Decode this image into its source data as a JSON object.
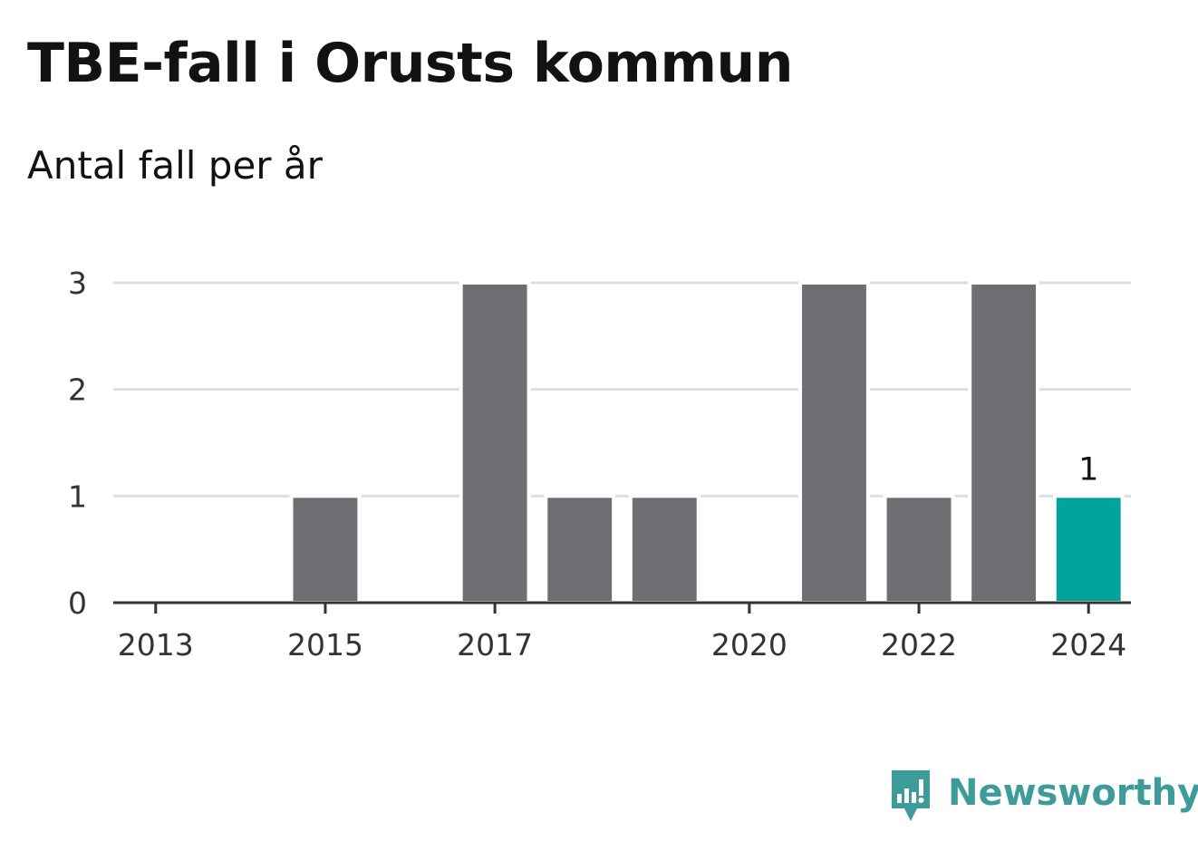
{
  "chart_data": {
    "type": "bar",
    "title": "TBE-fall i Orusts kommun",
    "subtitle": "Antal fall per år",
    "categories": [
      "2013",
      "2014",
      "2015",
      "2016",
      "2017",
      "2018",
      "2019",
      "2020",
      "2021",
      "2022",
      "2023",
      "2024"
    ],
    "values": [
      0,
      0,
      1,
      0,
      3,
      1,
      1,
      0,
      3,
      1,
      3,
      1
    ],
    "x_tick_labels": [
      "2013",
      "2015",
      "2017",
      "2020",
      "2022",
      "2024"
    ],
    "y_ticks": [
      0,
      1,
      2,
      3
    ],
    "ylim": [
      0,
      3
    ],
    "grid": true,
    "bar_color": "#6e6e73",
    "highlight_color": "#00a49a",
    "highlight_category": "2024",
    "data_labels": [
      {
        "category": "2024",
        "value": 1,
        "text": "1"
      }
    ]
  },
  "brand": {
    "name": "Newsworthy",
    "icon": "newsworthy-logo-icon",
    "color": "#3d9c9a"
  }
}
